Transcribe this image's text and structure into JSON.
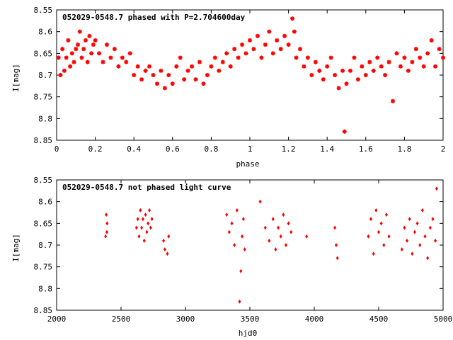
{
  "chart_data": [
    {
      "type": "scatter",
      "title": "052029-0548.7 phased with P=2.704600day",
      "xlabel": "phase",
      "ylabel": "I[mag]",
      "xlim": [
        0,
        2
      ],
      "ylim": [
        8.55,
        8.85
      ],
      "y_inverted": true,
      "x_ticks": [
        "0",
        "0.2",
        "0.4",
        "0.6",
        "0.8",
        "1",
        "1.2",
        "1.4",
        "1.6",
        "1.8",
        "2"
      ],
      "y_ticks": [
        "8.55",
        "8.6",
        "8.65",
        "8.7",
        "8.75",
        "8.8",
        "8.85"
      ],
      "grid": false,
      "marker": "asterisk",
      "color": "#ff0000",
      "series": [
        {
          "x": [
            0.01,
            0.02,
            0.03,
            0.04,
            0.05,
            0.06,
            0.07,
            0.08,
            0.09,
            0.1,
            0.11,
            0.12,
            0.13,
            0.14,
            0.15,
            0.16,
            0.17,
            0.18,
            0.19,
            0.2,
            0.22,
            0.24,
            0.26,
            0.28,
            0.3,
            0.32,
            0.34,
            0.36,
            0.38,
            0.4,
            0.42,
            0.44,
            0.46,
            0.48,
            0.5,
            0.52,
            0.54,
            0.56,
            0.58,
            0.6,
            0.62,
            0.64,
            0.66,
            0.68,
            0.7,
            0.72,
            0.74,
            0.76,
            0.78,
            0.8,
            0.82,
            0.84,
            0.86,
            0.88,
            0.9,
            0.92,
            0.94,
            0.96,
            0.98,
            1.0,
            1.02,
            1.04,
            1.06,
            1.08,
            1.1,
            1.12,
            1.14,
            1.16,
            1.18,
            1.2,
            1.22,
            1.23,
            1.24,
            1.26,
            1.28,
            1.3,
            1.32,
            1.34,
            1.36,
            1.38,
            1.4,
            1.42,
            1.44,
            1.46,
            1.48,
            1.49,
            1.5,
            1.52,
            1.54,
            1.56,
            1.58,
            1.6,
            1.62,
            1.64,
            1.66,
            1.68,
            1.7,
            1.72,
            1.74,
            1.76,
            1.78,
            1.8,
            1.82,
            1.84,
            1.86,
            1.88,
            1.9,
            1.92,
            1.94,
            1.96,
            1.98,
            2.0
          ],
          "y": [
            8.66,
            8.7,
            8.64,
            8.69,
            8.66,
            8.62,
            8.68,
            8.65,
            8.67,
            8.64,
            8.63,
            8.6,
            8.66,
            8.64,
            8.62,
            8.67,
            8.61,
            8.65,
            8.63,
            8.62,
            8.65,
            8.67,
            8.63,
            8.66,
            8.64,
            8.68,
            8.66,
            8.67,
            8.65,
            8.7,
            8.68,
            8.71,
            8.69,
            8.68,
            8.7,
            8.72,
            8.69,
            8.73,
            8.7,
            8.72,
            8.68,
            8.66,
            8.71,
            8.69,
            8.68,
            8.71,
            8.67,
            8.72,
            8.7,
            8.68,
            8.66,
            8.69,
            8.67,
            8.65,
            8.68,
            8.64,
            8.66,
            8.63,
            8.65,
            8.62,
            8.64,
            8.61,
            8.66,
            8.63,
            8.6,
            8.65,
            8.62,
            8.64,
            8.61,
            8.63,
            8.57,
            8.6,
            8.66,
            8.64,
            8.68,
            8.66,
            8.7,
            8.67,
            8.69,
            8.71,
            8.68,
            8.66,
            8.7,
            8.73,
            8.69,
            8.83,
            8.72,
            8.69,
            8.66,
            8.71,
            8.68,
            8.7,
            8.67,
            8.69,
            8.66,
            8.68,
            8.7,
            8.67,
            8.76,
            8.65,
            8.68,
            8.66,
            8.69,
            8.67,
            8.64,
            8.66,
            8.68,
            8.65,
            8.62,
            8.68,
            8.64,
            8.66
          ]
        }
      ]
    },
    {
      "type": "scatter",
      "title": "052029-0548.7 not phased light curve",
      "xlabel": "hjd0",
      "ylabel": "I[mag]",
      "xlim": [
        2000,
        5000
      ],
      "ylim": [
        8.55,
        8.85
      ],
      "y_inverted": true,
      "x_ticks": [
        "2000",
        "2500",
        "3000",
        "3500",
        "4000",
        "4500",
        "5000"
      ],
      "y_ticks": [
        "8.55",
        "8.6",
        "8.65",
        "8.7",
        "8.75",
        "8.8",
        "8.85"
      ],
      "grid": false,
      "marker": "diamond",
      "color": "#ff0000",
      "series": [
        {
          "x": [
            2380,
            2385,
            2390,
            2392,
            2620,
            2630,
            2640,
            2650,
            2660,
            2670,
            2680,
            2690,
            2700,
            2710,
            2720,
            2730,
            2740,
            2830,
            2840,
            2860,
            2870,
            3320,
            3340,
            3360,
            3380,
            3400,
            3420,
            3430,
            3440,
            3450,
            3460,
            3580,
            3620,
            3650,
            3680,
            3700,
            3720,
            3740,
            3760,
            3780,
            3800,
            3820,
            3940,
            4160,
            4170,
            4180,
            4420,
            4440,
            4460,
            4480,
            4500,
            4520,
            4540,
            4560,
            4580,
            4680,
            4700,
            4720,
            4740,
            4760,
            4780,
            4800,
            4820,
            4840,
            4860,
            4880,
            4900,
            4920,
            4940,
            4950
          ],
          "y": [
            8.68,
            8.63,
            8.67,
            8.65,
            8.66,
            8.64,
            8.68,
            8.62,
            8.66,
            8.64,
            8.69,
            8.63,
            8.67,
            8.65,
            8.62,
            8.66,
            8.64,
            8.69,
            8.71,
            8.72,
            8.68,
            8.63,
            8.67,
            8.65,
            8.7,
            8.62,
            8.83,
            8.76,
            8.68,
            8.64,
            8.71,
            8.6,
            8.66,
            8.69,
            8.64,
            8.71,
            8.66,
            8.68,
            8.63,
            8.7,
            8.65,
            8.67,
            8.68,
            8.66,
            8.7,
            8.73,
            8.68,
            8.64,
            8.72,
            8.62,
            8.67,
            8.65,
            8.7,
            8.63,
            8.68,
            8.71,
            8.66,
            8.69,
            8.64,
            8.72,
            8.67,
            8.65,
            8.7,
            8.62,
            8.68,
            8.73,
            8.66,
            8.64,
            8.69,
            8.57
          ]
        }
      ]
    }
  ]
}
